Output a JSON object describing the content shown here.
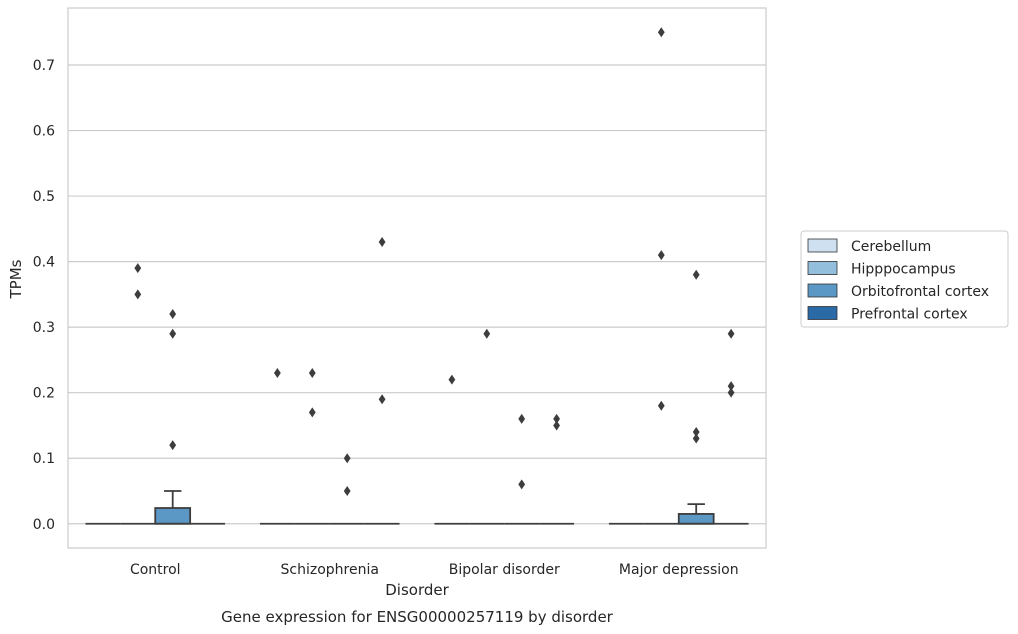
{
  "caption": "Gene expression for ENSG00000257119 by disorder",
  "chart_data": {
    "type": "boxplot",
    "title": "",
    "xlabel": "Disorder",
    "ylabel": "TPMs",
    "categories": [
      "Control",
      "Schizophrenia",
      "Bipolar disorder",
      "Major depression"
    ],
    "ylim": [
      -0.037,
      0.787
    ],
    "yticks": [
      0.0,
      0.1,
      0.2,
      0.3,
      0.4,
      0.5,
      0.6,
      0.7
    ],
    "ytick_labels": [
      "0.0",
      "0.1",
      "0.2",
      "0.3",
      "0.4",
      "0.5",
      "0.6",
      "0.7"
    ],
    "grid": true,
    "legend_position": "right",
    "series": [
      {
        "name": "Cerebellum",
        "color": "#cfe0f0",
        "boxes": [
          {
            "q1": 0,
            "median": 0,
            "q3": 0,
            "whisker_low": 0,
            "whisker_high": 0,
            "outliers": []
          },
          {
            "q1": 0,
            "median": 0,
            "q3": 0,
            "whisker_low": 0,
            "whisker_high": 0,
            "outliers": [
              0.23
            ]
          },
          {
            "q1": 0,
            "median": 0,
            "q3": 0,
            "whisker_low": 0,
            "whisker_high": 0,
            "outliers": [
              0.22
            ]
          },
          {
            "q1": 0,
            "median": 0,
            "q3": 0,
            "whisker_low": 0,
            "whisker_high": 0,
            "outliers": []
          }
        ]
      },
      {
        "name": "Hipppocampus",
        "color": "#94bfdc",
        "boxes": [
          {
            "q1": 0,
            "median": 0,
            "q3": 0,
            "whisker_low": 0,
            "whisker_high": 0,
            "outliers": [
              0.39,
              0.35
            ]
          },
          {
            "q1": 0,
            "median": 0,
            "q3": 0,
            "whisker_low": 0,
            "whisker_high": 0,
            "outliers": [
              0.23,
              0.17
            ]
          },
          {
            "q1": 0,
            "median": 0,
            "q3": 0,
            "whisker_low": 0,
            "whisker_high": 0,
            "outliers": [
              0.29
            ]
          },
          {
            "q1": 0,
            "median": 0,
            "q3": 0,
            "whisker_low": 0,
            "whisker_high": 0,
            "outliers": [
              0.75,
              0.41,
              0.18
            ]
          }
        ]
      },
      {
        "name": "Orbitofrontal cortex",
        "color": "#5b98c6",
        "boxes": [
          {
            "q1": 0,
            "median": 0,
            "q3": 0.024,
            "whisker_low": 0,
            "whisker_high": 0.05,
            "outliers": [
              0.32,
              0.29,
              0.12
            ]
          },
          {
            "q1": 0,
            "median": 0,
            "q3": 0,
            "whisker_low": 0,
            "whisker_high": 0,
            "outliers": [
              0.1,
              0.05
            ]
          },
          {
            "q1": 0,
            "median": 0,
            "q3": 0,
            "whisker_low": 0,
            "whisker_high": 0,
            "outliers": [
              0.16,
              0.06
            ]
          },
          {
            "q1": 0,
            "median": 0,
            "q3": 0.015,
            "whisker_low": 0,
            "whisker_high": 0.03,
            "outliers": [
              0.38,
              0.14,
              0.13
            ]
          }
        ]
      },
      {
        "name": "Prefrontal cortex",
        "color": "#2a6aa6",
        "boxes": [
          {
            "q1": 0,
            "median": 0,
            "q3": 0,
            "whisker_low": 0,
            "whisker_high": 0,
            "outliers": []
          },
          {
            "q1": 0,
            "median": 0,
            "q3": 0,
            "whisker_low": 0,
            "whisker_high": 0,
            "outliers": [
              0.43,
              0.19
            ]
          },
          {
            "q1": 0,
            "median": 0,
            "q3": 0,
            "whisker_low": 0,
            "whisker_high": 0,
            "outliers": [
              0.16,
              0.15
            ]
          },
          {
            "q1": 0,
            "median": 0,
            "q3": 0,
            "whisker_low": 0,
            "whisker_high": 0,
            "outliers": [
              0.29,
              0.21,
              0.2
            ]
          }
        ]
      }
    ]
  }
}
